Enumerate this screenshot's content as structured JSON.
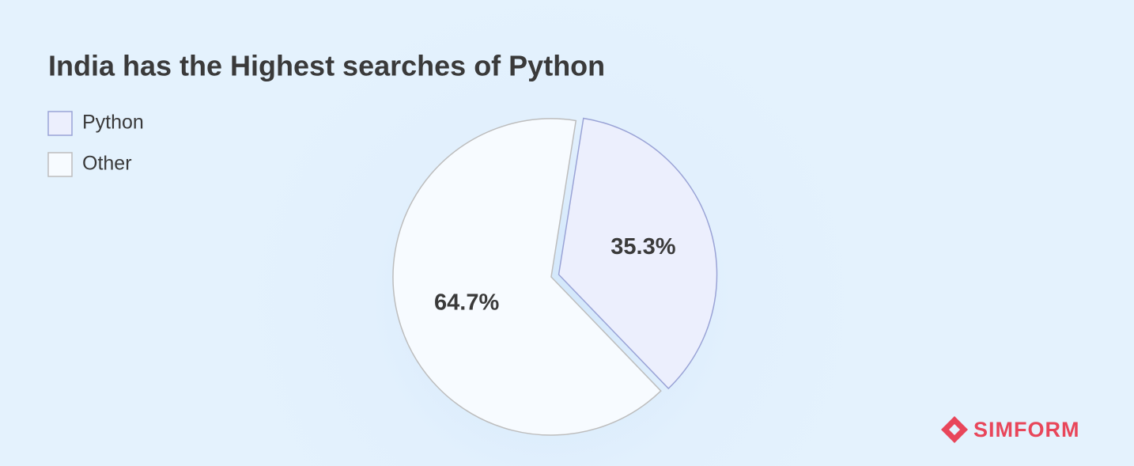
{
  "chart_data": {
    "type": "pie",
    "title": "India has the Highest searches of Python",
    "categories": [
      "Python",
      "Other"
    ],
    "values": [
      35.3,
      64.7
    ],
    "value_labels": [
      "35.3%",
      "64.7%"
    ],
    "colors": [
      "#eceffd",
      "#f7fbff"
    ],
    "legend": "upper left",
    "brand": "SIMFORM"
  }
}
